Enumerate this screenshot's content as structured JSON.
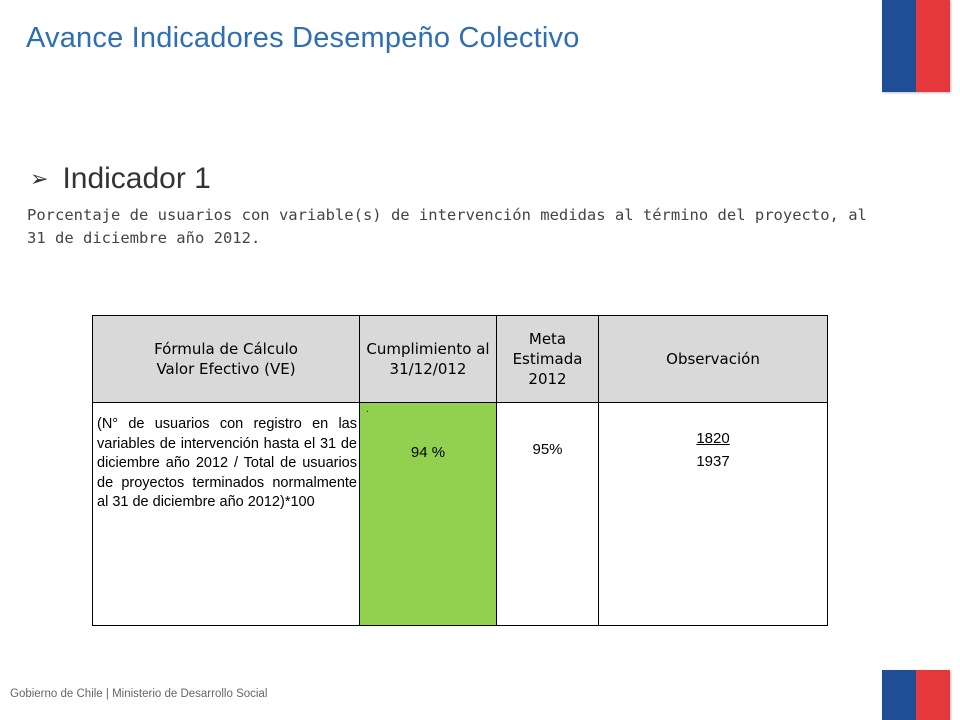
{
  "slide": {
    "title": "Avance Indicadores Desempeño Colectivo",
    "bullet_marker": "➢",
    "indicator_heading": "Indicador 1",
    "description": "Porcentaje de usuarios con variable(s) de intervención medidas al término del proyecto, al 31 de diciembre año 2012.",
    "footer": "Gobierno de Chile | Ministerio de Desarrollo Social",
    "colors": {
      "title": "#2e6fb3",
      "header_fill": "#d9d9d9",
      "cumplimiento_fill": "#92d050",
      "flag_blue": "#1f4e97",
      "flag_red": "#e5383b"
    }
  },
  "table": {
    "headers": {
      "formula": "Fórmula de Cálculo\nValor Efectivo  (VE)",
      "cumplimiento": "Cumplimiento al\n31/12/012",
      "meta": "Meta\nEstimada\n2012",
      "observacion": "Observación"
    },
    "row": {
      "formula": "(N°  de usuarios con registro en las variables de intervención hasta el 31 de diciembre año 2012  /  Total de usuarios de proyectos  terminados normalmente al 31 de diciembre año 2012)*100",
      "cumplimiento_marker": ".",
      "cumplimiento": "94 %",
      "meta": "95%",
      "observacion_numerator": "1820",
      "observacion_denominator": "1937"
    }
  }
}
